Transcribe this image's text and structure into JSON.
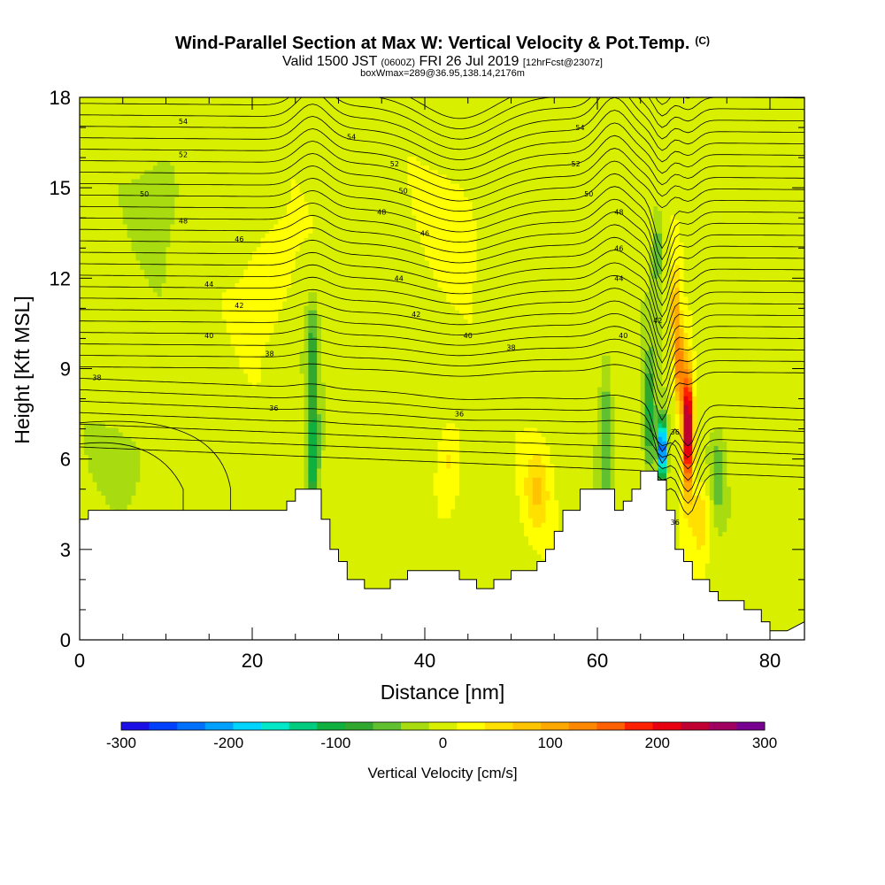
{
  "header": {
    "title": "Wind-Parallel Section at Max W: Vertical Velocity & Pot.Temp.",
    "copyright": "(C)",
    "valid_prefix": "Valid 1500 JST",
    "valid_utc": "(0600Z)",
    "valid_date": "FRI 26 Jul 2019",
    "forecast": "[12hrFcst@2307z]",
    "box_info": "boxWmax=289@36.95,138.14,2176m"
  },
  "colors": {
    "terrain": "#ffffff",
    "contour": "#000000",
    "scale": [
      "#1a10e6",
      "#0040ff",
      "#0070ff",
      "#00a0ff",
      "#00d4ff",
      "#00e8c8",
      "#00cc80",
      "#10b040",
      "#30a830",
      "#60c030",
      "#a8dc10",
      "#d8f000",
      "#ffff00",
      "#ffe000",
      "#ffc400",
      "#ffa800",
      "#ff8800",
      "#ff6000",
      "#ff2000",
      "#e80010",
      "#c00030",
      "#a00060",
      "#780090"
    ]
  },
  "chart_data": {
    "type": "heatmap",
    "xlabel": "Distance [nm]",
    "ylabel": "Height [Kft MSL]",
    "xlim": [
      0,
      84
    ],
    "ylim": [
      0,
      18
    ],
    "xticks": [
      0,
      20,
      40,
      60,
      80
    ],
    "yticks": [
      0,
      3,
      6,
      9,
      12,
      15,
      18
    ],
    "colorbar": {
      "label": "Vertical Velocity [cm/s]",
      "range": [
        -300,
        300
      ],
      "ticks": [
        -300,
        -200,
        -100,
        0,
        100,
        200,
        300
      ]
    },
    "terrain": [
      [
        0,
        4.0
      ],
      [
        1,
        4.0
      ],
      [
        1,
        4.3
      ],
      [
        5,
        4.3
      ],
      [
        10,
        4.3
      ],
      [
        15,
        4.3
      ],
      [
        20,
        4.3
      ],
      [
        24,
        4.3
      ],
      [
        24,
        4.6
      ],
      [
        25,
        4.6
      ],
      [
        25,
        5.0
      ],
      [
        27,
        5.0
      ],
      [
        28,
        5.0
      ],
      [
        28,
        4.0
      ],
      [
        29,
        4.0
      ],
      [
        29,
        3.0
      ],
      [
        30,
        3.0
      ],
      [
        30,
        2.6
      ],
      [
        31,
        2.6
      ],
      [
        31,
        2.0
      ],
      [
        32,
        2.0
      ],
      [
        33,
        2.0
      ],
      [
        33,
        1.7
      ],
      [
        36,
        1.7
      ],
      [
        36,
        2.0
      ],
      [
        38,
        2.0
      ],
      [
        38,
        2.3
      ],
      [
        44,
        2.3
      ],
      [
        44,
        2.0
      ],
      [
        46,
        2.0
      ],
      [
        46,
        1.7
      ],
      [
        48,
        1.7
      ],
      [
        48,
        2.0
      ],
      [
        50,
        2.0
      ],
      [
        50,
        2.3
      ],
      [
        53,
        2.3
      ],
      [
        53,
        2.6
      ],
      [
        54,
        2.6
      ],
      [
        54,
        3.0
      ],
      [
        55,
        3.0
      ],
      [
        55,
        3.6
      ],
      [
        56,
        3.6
      ],
      [
        56,
        4.3
      ],
      [
        58,
        4.3
      ],
      [
        58,
        4.6
      ],
      [
        58,
        5.0
      ],
      [
        59,
        5.0
      ],
      [
        62,
        5.0
      ],
      [
        62,
        4.3
      ],
      [
        63,
        4.3
      ],
      [
        63,
        4.6
      ],
      [
        64,
        4.6
      ],
      [
        64,
        5.0
      ],
      [
        65,
        5.0
      ],
      [
        65,
        5.6
      ],
      [
        66,
        5.6
      ],
      [
        67,
        5.6
      ],
      [
        67,
        5.3
      ],
      [
        68,
        5.3
      ],
      [
        68,
        4.3
      ],
      [
        69,
        4.3
      ],
      [
        69,
        3.0
      ],
      [
        70,
        3.0
      ],
      [
        70,
        2.6
      ],
      [
        71,
        2.6
      ],
      [
        71,
        2.0
      ],
      [
        72,
        2.0
      ],
      [
        73,
        2.0
      ],
      [
        73,
        1.6
      ],
      [
        74,
        1.6
      ],
      [
        74,
        1.3
      ],
      [
        77,
        1.3
      ],
      [
        77,
        1.0
      ],
      [
        79,
        1.0
      ],
      [
        79,
        0.6
      ],
      [
        80,
        0.6
      ],
      [
        80,
        0.3
      ],
      [
        82,
        0.3
      ],
      [
        84,
        0.6
      ]
    ],
    "w_field": [
      {
        "x": 27,
        "y": 6.0,
        "w": -120,
        "sx": 0.7,
        "sy": 2.5
      },
      {
        "x": 27,
        "y": 10.0,
        "w": -60,
        "sx": 0.7,
        "sy": 1.5
      },
      {
        "x": 43,
        "y": 6.0,
        "w": 50,
        "sx": 1.5,
        "sy": 1.5
      },
      {
        "x": 53,
        "y": 5.0,
        "w": 60,
        "sx": 1.5,
        "sy": 1.5
      },
      {
        "x": 61,
        "y": 7.0,
        "w": -70,
        "sx": 0.8,
        "sy": 2.5
      },
      {
        "x": 66,
        "y": 7.5,
        "w": -110,
        "sx": 0.7,
        "sy": 2.0
      },
      {
        "x": 67.5,
        "y": 6.3,
        "w": -290,
        "sx": 0.5,
        "sy": 1.0
      },
      {
        "x": 67,
        "y": 13.0,
        "w": -60,
        "sx": 0.6,
        "sy": 1.5
      },
      {
        "x": 70.5,
        "y": 7.0,
        "w": 300,
        "sx": 0.6,
        "sy": 2.0
      },
      {
        "x": 69.5,
        "y": 9.0,
        "w": 150,
        "sx": 0.6,
        "sy": 1.5
      },
      {
        "x": 69,
        "y": 11.0,
        "w": 90,
        "sx": 0.5,
        "sy": 1.5
      },
      {
        "x": 72,
        "y": 4.0,
        "w": 70,
        "sx": 1.0,
        "sy": 1.2
      },
      {
        "x": 74,
        "y": 5.5,
        "w": -60,
        "sx": 0.8,
        "sy": 1.2
      },
      {
        "x": 22,
        "y": 12.0,
        "w": 40,
        "sx": 3.0,
        "sy": 2.0
      },
      {
        "x": 44,
        "y": 14.0,
        "w": 25,
        "sx": 4.0,
        "sy": 2.0
      },
      {
        "x": 10,
        "y": 15.0,
        "w": -30,
        "sx": 3.0,
        "sy": 2.0
      },
      {
        "x": 5,
        "y": 6.0,
        "w": -30,
        "sx": 3.0,
        "sy": 1.0
      }
    ],
    "contour_labels": [
      {
        "text": "54",
        "x": 12,
        "y": 17.2
      },
      {
        "text": "54",
        "x": 31.5,
        "y": 16.7
      },
      {
        "text": "54",
        "x": 58,
        "y": 17.0
      },
      {
        "text": "52",
        "x": 12,
        "y": 16.1
      },
      {
        "text": "52",
        "x": 36.5,
        "y": 15.8
      },
      {
        "text": "52",
        "x": 57.5,
        "y": 15.8
      },
      {
        "text": "50",
        "x": 7.5,
        "y": 14.8
      },
      {
        "text": "50",
        "x": 37.5,
        "y": 14.9
      },
      {
        "text": "50",
        "x": 59,
        "y": 14.8
      },
      {
        "text": "48",
        "x": 12,
        "y": 13.9
      },
      {
        "text": "48",
        "x": 35,
        "y": 14.2
      },
      {
        "text": "48",
        "x": 62.5,
        "y": 14.2
      },
      {
        "text": "46",
        "x": 18.5,
        "y": 13.3
      },
      {
        "text": "46",
        "x": 40,
        "y": 13.5
      },
      {
        "text": "46",
        "x": 62.5,
        "y": 13.0
      },
      {
        "text": "44",
        "x": 15,
        "y": 11.8
      },
      {
        "text": "44",
        "x": 37,
        "y": 12.0
      },
      {
        "text": "44",
        "x": 62.5,
        "y": 12.0
      },
      {
        "text": "42",
        "x": 18.5,
        "y": 11.1
      },
      {
        "text": "42",
        "x": 39,
        "y": 10.8
      },
      {
        "text": "42",
        "x": 67,
        "y": 10.6
      },
      {
        "text": "40",
        "x": 15,
        "y": 10.1
      },
      {
        "text": "40",
        "x": 45,
        "y": 10.1
      },
      {
        "text": "40",
        "x": 63,
        "y": 10.1
      },
      {
        "text": "38",
        "x": 22,
        "y": 9.5
      },
      {
        "text": "38",
        "x": 50,
        "y": 9.7
      },
      {
        "text": "38",
        "x": 2,
        "y": 8.7
      },
      {
        "text": "36",
        "x": 22.5,
        "y": 7.7
      },
      {
        "text": "36",
        "x": 44,
        "y": 7.5
      },
      {
        "text": "36",
        "x": 69,
        "y": 6.9
      },
      {
        "text": "36",
        "x": 69,
        "y": 3.9
      }
    ]
  }
}
